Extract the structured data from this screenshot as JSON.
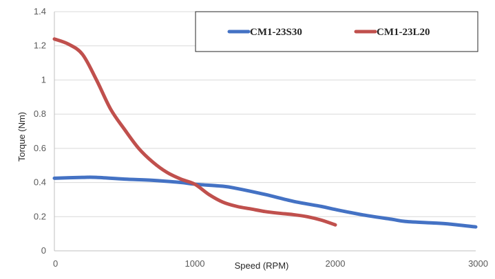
{
  "chart_data": {
    "type": "line",
    "title": "",
    "xlabel": "Speed (RPM)",
    "ylabel": "Torque (Nm)",
    "xlim": [
      0,
      3000
    ],
    "ylim": [
      0,
      1.4
    ],
    "x_ticks": [
      0,
      1000,
      2000,
      3000
    ],
    "x_tick_labels": [
      "0",
      "1000",
      "2000",
      "3000"
    ],
    "y_ticks": [
      0,
      0.2,
      0.4,
      0.6,
      0.8,
      1,
      1.2,
      1.4
    ],
    "y_tick_labels": [
      "0",
      "0.2",
      "0.4",
      "0.6",
      "0.8",
      "1",
      "1.2",
      "1.4"
    ],
    "grid": "horizontal",
    "legend_position": "top-right",
    "series": [
      {
        "name": "CM1-23S30",
        "color": "#4472C4",
        "x": [
          0,
          200,
          300,
          500,
          700,
          900,
          1000,
          1200,
          1300,
          1500,
          1700,
          1900,
          2000,
          2200,
          2400,
          2500,
          2700,
          2800,
          3000
        ],
        "y": [
          0.425,
          0.43,
          0.43,
          0.42,
          0.413,
          0.4,
          0.39,
          0.378,
          0.365,
          0.33,
          0.29,
          0.26,
          0.242,
          0.21,
          0.185,
          0.172,
          0.163,
          0.158,
          0.14
        ]
      },
      {
        "name": "CM1-23L20",
        "color": "#C0504D",
        "x": [
          0,
          100,
          200,
          300,
          400,
          500,
          600,
          700,
          800,
          900,
          1000,
          1100,
          1200,
          1300,
          1400,
          1500,
          1600,
          1700,
          1800,
          1900,
          2000
        ],
        "y": [
          1.24,
          1.21,
          1.15,
          1.0,
          0.83,
          0.71,
          0.6,
          0.52,
          0.46,
          0.42,
          0.39,
          0.33,
          0.285,
          0.26,
          0.245,
          0.23,
          0.22,
          0.212,
          0.2,
          0.18,
          0.152
        ]
      }
    ]
  }
}
